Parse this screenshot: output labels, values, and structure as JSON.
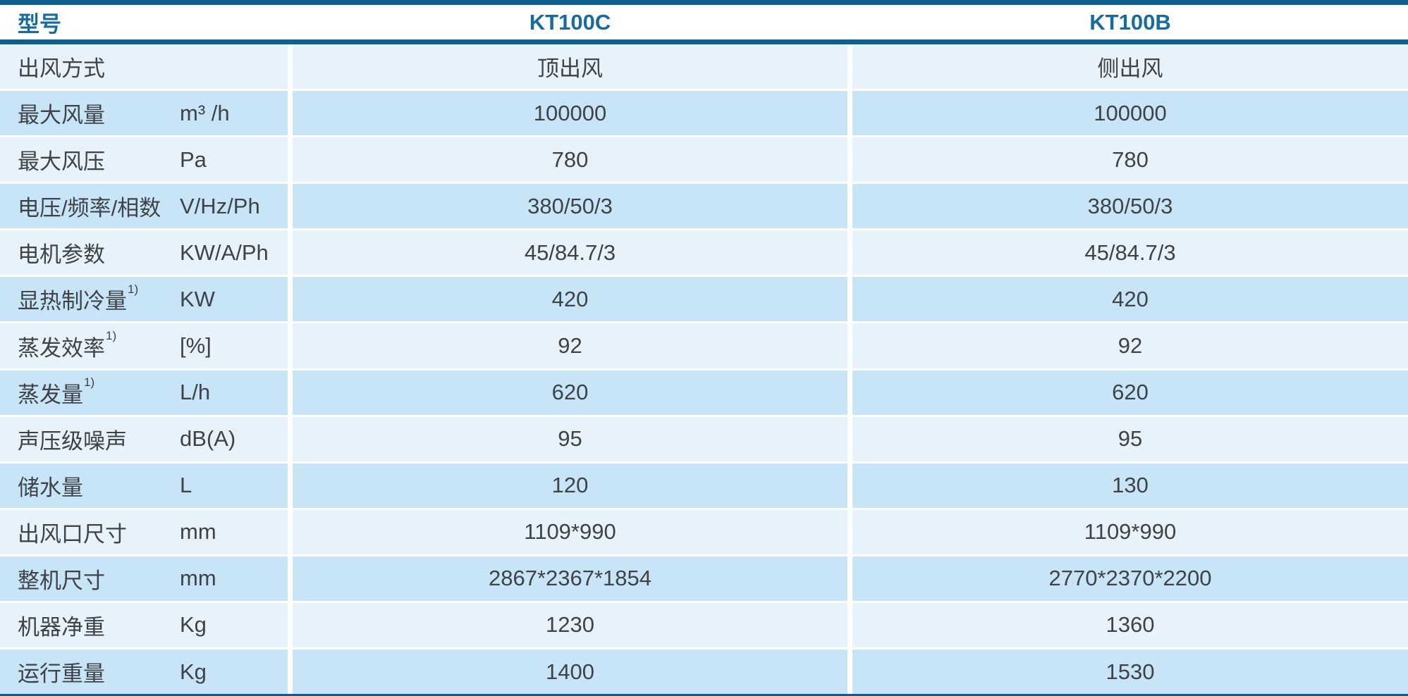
{
  "table": {
    "colors": {
      "accent_bar": "#0E6090",
      "header_text": "#176B9E",
      "row_light": "#E7F2FB",
      "row_dark": "#C8E4F7",
      "body_text": "#3E4347"
    },
    "header": {
      "col_param": "型号",
      "col_model_1": "KT100C",
      "col_model_2": "KT100B"
    },
    "rows": [
      {
        "label": "出风方式",
        "sup": "",
        "unit": "",
        "kt100c": "顶出风",
        "kt100b": "侧出风"
      },
      {
        "label": "最大风量",
        "sup": "",
        "unit": "m³ /h",
        "kt100c": "100000",
        "kt100b": "100000"
      },
      {
        "label": "最大风压",
        "sup": "",
        "unit": "Pa",
        "kt100c": "780",
        "kt100b": "780"
      },
      {
        "label": "电压/频率/相数",
        "sup": "",
        "unit": "V/Hz/Ph",
        "kt100c": "380/50/3",
        "kt100b": "380/50/3"
      },
      {
        "label": "电机参数",
        "sup": "",
        "unit": "KW/A/Ph",
        "kt100c": "45/84.7/3",
        "kt100b": "45/84.7/3"
      },
      {
        "label": "显热制冷量",
        "sup": "1)",
        "unit": "KW",
        "kt100c": "420",
        "kt100b": "420"
      },
      {
        "label": "蒸发效率",
        "sup": "1)",
        "unit": "[%]",
        "kt100c": "92",
        "kt100b": "92"
      },
      {
        "label": "蒸发量",
        "sup": "1)",
        "unit": "L/h",
        "kt100c": "620",
        "kt100b": "620"
      },
      {
        "label": "声压级噪声",
        "sup": "",
        "unit": "dB(A)",
        "kt100c": "95",
        "kt100b": "95"
      },
      {
        "label": "储水量",
        "sup": "",
        "unit": "L",
        "kt100c": "120",
        "kt100b": "130"
      },
      {
        "label": "出风口尺寸",
        "sup": "",
        "unit": "mm",
        "kt100c": "1109*990",
        "kt100b": "1109*990"
      },
      {
        "label": "整机尺寸",
        "sup": "",
        "unit": "mm",
        "kt100c": "2867*2367*1854",
        "kt100b": "2770*2370*2200"
      },
      {
        "label": "机器净重",
        "sup": "",
        "unit": "Kg",
        "kt100c": "1230",
        "kt100b": "1360"
      },
      {
        "label": "运行重量",
        "sup": "",
        "unit": "Kg",
        "kt100c": "1400",
        "kt100b": "1530"
      }
    ]
  }
}
